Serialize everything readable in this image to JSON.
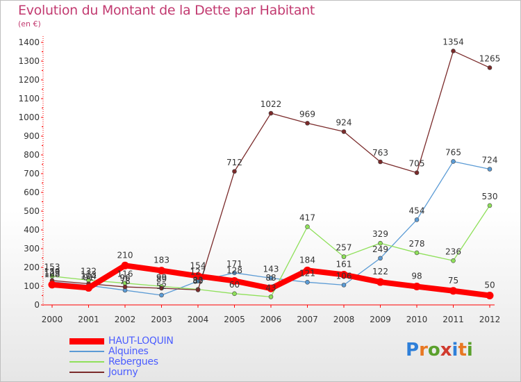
{
  "header": {
    "title": "Evolution du Montant de la Dette par Habitant",
    "unit": "(en €)"
  },
  "logo": {
    "text": "Proxiti",
    "colors": [
      "#2e7fd9",
      "#e87722",
      "#5aa02c",
      "#d03a2e",
      "#2e7fd9",
      "#e87722",
      "#5aa02c"
    ]
  },
  "chart_data": {
    "type": "line",
    "title": "Evolution du Montant de la Dette par Habitant",
    "ylabel": "(en €)",
    "xlabel": "",
    "x": [
      2000,
      2001,
      2002,
      2003,
      2004,
      2005,
      2006,
      2007,
      2008,
      2009,
      2010,
      2011,
      2012
    ],
    "x_labels": [
      "2000",
      "2001",
      "2002",
      "2003",
      "2004",
      "2005",
      "2006",
      "2007",
      "2008",
      "2009",
      "2010",
      "2011",
      "2012"
    ],
    "ylim": [
      0,
      1400
    ],
    "y_ticks": [
      0,
      100,
      200,
      300,
      400,
      500,
      600,
      700,
      800,
      900,
      1000,
      1100,
      1200,
      1300,
      1400
    ],
    "y_tick_labels": [
      "0",
      "100",
      "200",
      "300",
      "400",
      "500",
      "600",
      "700",
      "800",
      "900",
      "1000",
      "1100",
      "1200",
      "1300",
      "1400"
    ],
    "grid": "none",
    "legend_position": "bottom-left",
    "series": [
      {
        "name": "HAUT-LOQUIN",
        "color": "#ff0000",
        "values": [
          108,
          91,
          210,
          183,
          154,
          128,
          88,
          184,
          161,
          122,
          98,
          75,
          50
        ],
        "labels": [
          "108",
          "91",
          "210",
          "183",
          "154",
          "128",
          "88",
          "184",
          "161",
          "122",
          "98",
          "75",
          "50"
        ]
      },
      {
        "name": "Alquines",
        "color": "#5b9bd5",
        "values": [
          123,
          104,
          78,
          52,
          127,
          171,
          143,
          121,
          106,
          249,
          454,
          765,
          724
        ],
        "labels": [
          "123",
          "104",
          "78",
          "52",
          "127",
          "171",
          "143",
          "121",
          "106",
          "249",
          "454",
          "765",
          "724"
        ]
      },
      {
        "name": "Rebergues",
        "color": "#8fe05a",
        "values": [
          153,
          132,
          116,
          99,
          83,
          60,
          43,
          417,
          257,
          329,
          278,
          236,
          530
        ],
        "labels": [
          "153",
          "132",
          "116",
          "99",
          "83",
          "60",
          "43",
          "417",
          "257",
          "329",
          "278",
          "236",
          "530"
        ]
      },
      {
        "name": "Journy",
        "color": "#7a2a2a",
        "values": [
          130,
          113,
          96,
          89,
          80,
          712,
          1022,
          969,
          924,
          763,
          705,
          1354,
          1265
        ],
        "labels": [
          "130",
          "113",
          "96",
          "89",
          "80",
          "712",
          "1022",
          "969",
          "924",
          "763",
          "705",
          "1354",
          "1265"
        ]
      }
    ]
  }
}
